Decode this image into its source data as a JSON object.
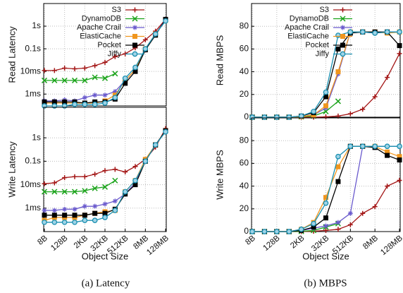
{
  "captions": [
    "(a) Latency",
    "(b) MBPS"
  ],
  "chart_data": [
    {
      "type": "line",
      "ylabel": "Read Latency",
      "log": true,
      "grid": true,
      "legend": "top",
      "ylim": [
        0.0003,
        10
      ],
      "yticks": [
        {
          "value": 0.001,
          "label": "1ms"
        },
        {
          "value": 0.01,
          "label": "10ms"
        },
        {
          "value": 0.1,
          "label": "0.1s"
        },
        {
          "value": 1,
          "label": "1s"
        }
      ],
      "series": [
        {
          "name": "S3",
          "color": "#a31515",
          "marker": "plus",
          "values": [
            0.011,
            0.011,
            0.014,
            0.013,
            0.014,
            0.018,
            0.025,
            0.045,
            0.06,
            0.11,
            0.25,
            0.6,
            2
          ]
        },
        {
          "name": "DynamoDB",
          "color": "#1aa31a",
          "marker": "cross",
          "values": [
            0.004,
            0.004,
            0.004,
            0.004,
            0.004,
            0.0055,
            0.005,
            0.008,
            null,
            null,
            null,
            null,
            null
          ]
        },
        {
          "name": "Apache Crail",
          "color": "#6a5acd",
          "marker": "star",
          "values": [
            0.0005,
            0.0005,
            0.00055,
            0.0005,
            0.0007,
            0.0009,
            0.0009,
            0.0013,
            0.004,
            0.012,
            0.1,
            0.45,
            2
          ]
        },
        {
          "name": "ElastiCache",
          "color": "#f0961e",
          "marker": "square",
          "values": [
            0.0004,
            0.0004,
            0.0004,
            0.0004,
            0.0004,
            0.0004,
            0.0005,
            0.0009,
            0.004,
            0.012,
            0.1,
            0.45,
            1.8
          ]
        },
        {
          "name": "Pocket",
          "color": "#000000",
          "marker": "square",
          "values": [
            0.00045,
            0.00045,
            0.00045,
            0.00045,
            0.0004,
            0.00045,
            0.00045,
            0.0006,
            0.003,
            0.01,
            0.09,
            0.4,
            2
          ]
        },
        {
          "name": "Jiffy",
          "color": "#1a8fb0",
          "marker": "circle",
          "values": [
            0.0003,
            0.0003,
            0.0003,
            0.00035,
            0.00035,
            0.00035,
            0.0004,
            0.0007,
            0.005,
            0.015,
            0.1,
            0.45,
            1.7
          ]
        }
      ]
    },
    {
      "type": "line",
      "ylabel": "Read MBPS",
      "grid": true,
      "legend": "top",
      "ylim": [
        0,
        100
      ],
      "yticks": [
        0,
        20,
        40,
        60,
        80
      ],
      "series": [
        {
          "name": "S3",
          "color": "#a31515",
          "marker": "plus",
          "values": [
            0,
            0,
            0,
            0,
            0,
            0,
            0.3,
            1,
            3,
            7,
            18,
            35,
            56
          ]
        },
        {
          "name": "DynamoDB",
          "color": "#1aa31a",
          "marker": "cross",
          "values": [
            0,
            0,
            0,
            0,
            0.3,
            1,
            5,
            14,
            null,
            null,
            null,
            null,
            null
          ]
        },
        {
          "name": "Apache Crail",
          "color": "#6a5acd",
          "marker": "star",
          "values": [
            0,
            0,
            0,
            0,
            0.5,
            2,
            8,
            38,
            75,
            75,
            74,
            75,
            75
          ]
        },
        {
          "name": "ElastiCache",
          "color": "#f0961e",
          "marker": "square",
          "values": [
            0,
            0,
            0,
            0,
            0.5,
            2,
            10,
            40,
            75,
            75,
            75,
            74,
            75
          ]
        },
        {
          "name": "Pocket",
          "color": "#000000",
          "marker": "square",
          "values": [
            0,
            0,
            0,
            0,
            1,
            4,
            18,
            60,
            74,
            75,
            75,
            75,
            63
          ]
        },
        {
          "name": "Jiffy",
          "color": "#1a8fb0",
          "marker": "circle",
          "values": [
            0,
            0,
            0,
            0,
            1,
            5,
            22,
            72,
            75,
            75,
            74,
            75,
            75
          ]
        }
      ]
    },
    {
      "type": "line",
      "ylabel": "Write Latency",
      "xlabel": "Object Size",
      "log": true,
      "grid": true,
      "categories": [
        "8B",
        null,
        "128B",
        null,
        "2KB",
        null,
        "32KB",
        null,
        "512KB",
        null,
        "8MB",
        null,
        "128MB"
      ],
      "ylim": [
        0.0001,
        20
      ],
      "yticks": [
        {
          "value": 0.001,
          "label": "1ms"
        },
        {
          "value": 0.01,
          "label": "10ms"
        },
        {
          "value": 0.1,
          "label": "0.1s"
        },
        {
          "value": 1,
          "label": "1s"
        }
      ],
      "series": [
        {
          "color": "#a31515",
          "marker": "plus",
          "values": [
            0.011,
            0.012,
            0.02,
            0.022,
            0.022,
            0.028,
            0.04,
            0.045,
            0.035,
            0.06,
            0.12,
            0.4,
            2.5
          ]
        },
        {
          "color": "#1aa31a",
          "marker": "cross",
          "values": [
            0.005,
            0.005,
            0.005,
            0.005,
            0.0055,
            0.007,
            0.008,
            0.015,
            null,
            null,
            null,
            null,
            null
          ]
        },
        {
          "color": "#6a5acd",
          "marker": "star",
          "values": [
            0.0008,
            0.0008,
            0.0009,
            0.0009,
            0.0012,
            0.0012,
            0.0015,
            0.002,
            0.004,
            0.012,
            0.1,
            0.5,
            2
          ]
        },
        {
          "color": "#f0961e",
          "marker": "square",
          "values": [
            0.0003,
            0.0004,
            0.0004,
            0.0004,
            0.0005,
            0.0006,
            0.0007,
            0.0008,
            0.005,
            0.015,
            0.12,
            0.5,
            2
          ]
        },
        {
          "color": "#000000",
          "marker": "square",
          "values": [
            0.0005,
            0.0005,
            0.0005,
            0.0005,
            0.0005,
            0.0006,
            0.0006,
            0.0009,
            0.004,
            0.01,
            0.1,
            0.5,
            2
          ]
        },
        {
          "color": "#1a8fb0",
          "marker": "circle",
          "values": [
            0.00025,
            0.00025,
            0.00025,
            0.00025,
            0.0003,
            0.0003,
            0.0004,
            0.0008,
            0.005,
            0.015,
            0.1,
            0.5,
            1.8
          ]
        }
      ]
    },
    {
      "type": "line",
      "ylabel": "Write MBPS",
      "xlabel": "Object Size",
      "grid": true,
      "categories": [
        "8B",
        null,
        "128B",
        null,
        "2KB",
        null,
        "32KB",
        null,
        "512KB",
        null,
        "8MB",
        null,
        "128MB"
      ],
      "ylim": [
        0,
        100
      ],
      "yticks": [
        0,
        20,
        40,
        60,
        80
      ],
      "series": [
        {
          "color": "#a31515",
          "marker": "plus",
          "values": [
            0,
            0,
            0,
            0,
            0,
            0.3,
            1,
            2,
            6,
            16,
            22,
            40,
            45
          ]
        },
        {
          "color": "#1aa31a",
          "marker": "cross",
          "values": [
            0,
            0,
            0,
            0,
            0.2,
            1,
            4,
            7,
            null,
            null,
            null,
            null,
            null
          ]
        },
        {
          "color": "#6a5acd",
          "marker": "star",
          "values": [
            0,
            0,
            0,
            0,
            1,
            3,
            5,
            8,
            16,
            75,
            75,
            75,
            75
          ]
        },
        {
          "color": "#f0961e",
          "marker": "square",
          "values": [
            0,
            0,
            0,
            0,
            2,
            8,
            30,
            57,
            75,
            75,
            75,
            70,
            66
          ]
        },
        {
          "color": "#000000",
          "marker": "square",
          "values": [
            0,
            0,
            0,
            0,
            1,
            4,
            12,
            44,
            75,
            75,
            74,
            67,
            63
          ]
        },
        {
          "color": "#1a8fb0",
          "marker": "circle",
          "values": [
            0,
            0,
            0,
            0,
            2,
            7,
            25,
            66,
            75,
            75,
            75,
            75,
            75
          ]
        }
      ]
    }
  ]
}
